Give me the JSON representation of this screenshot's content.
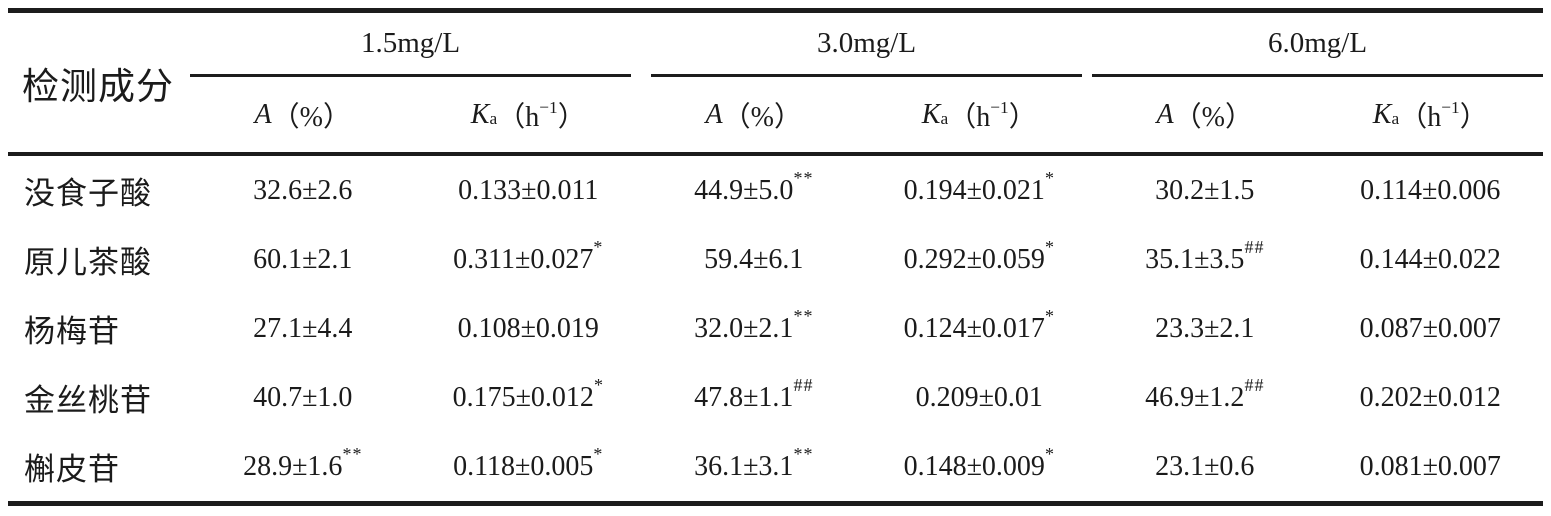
{
  "table": {
    "corner_header": "检测成分",
    "groups": [
      {
        "label": "1.5mg/L"
      },
      {
        "label": "3.0mg/L"
      },
      {
        "label": "6.0mg/L"
      }
    ],
    "subheader": {
      "a_symbol": "A",
      "a_rest": "（%）",
      "k_symbol": "K",
      "k_subscript": "a",
      "k_open": "（h",
      "k_superscript": "−1",
      "k_close": "）"
    },
    "rows": [
      {
        "component": "没食子酸",
        "cells": [
          {
            "value": "32.6±2.6",
            "mark": ""
          },
          {
            "value": "0.133±0.011",
            "mark": ""
          },
          {
            "value": "44.9±5.0",
            "mark": "**"
          },
          {
            "value": "0.194±0.021",
            "mark": "*"
          },
          {
            "value": "30.2±1.5",
            "mark": ""
          },
          {
            "value": "0.114±0.006",
            "mark": ""
          }
        ]
      },
      {
        "component": "原儿茶酸",
        "cells": [
          {
            "value": "60.1±2.1",
            "mark": ""
          },
          {
            "value": "0.311±0.027",
            "mark": "*"
          },
          {
            "value": "59.4±6.1",
            "mark": ""
          },
          {
            "value": "0.292±0.059",
            "mark": "*"
          },
          {
            "value": "35.1±3.5",
            "mark": "##"
          },
          {
            "value": "0.144±0.022",
            "mark": ""
          }
        ]
      },
      {
        "component": "杨梅苷",
        "cells": [
          {
            "value": "27.1±4.4",
            "mark": ""
          },
          {
            "value": "0.108±0.019",
            "mark": ""
          },
          {
            "value": "32.0±2.1",
            "mark": "**"
          },
          {
            "value": "0.124±0.017",
            "mark": "*"
          },
          {
            "value": "23.3±2.1",
            "mark": ""
          },
          {
            "value": "0.087±0.007",
            "mark": ""
          }
        ]
      },
      {
        "component": "金丝桃苷",
        "cells": [
          {
            "value": "40.7±1.0",
            "mark": ""
          },
          {
            "value": "0.175±0.012",
            "mark": "*"
          },
          {
            "value": "47.8±1.1",
            "mark": "##"
          },
          {
            "value": "0.209±0.01",
            "mark": ""
          },
          {
            "value": "46.9±1.2",
            "mark": "##"
          },
          {
            "value": "0.202±0.012",
            "mark": ""
          }
        ]
      },
      {
        "component": "槲皮苷",
        "cells": [
          {
            "value": "28.9±1.6",
            "mark": "**"
          },
          {
            "value": "0.118±0.005",
            "mark": "*"
          },
          {
            "value": "36.1±3.1",
            "mark": "**"
          },
          {
            "value": "0.148±0.009",
            "mark": "*"
          },
          {
            "value": "23.1±0.6",
            "mark": ""
          },
          {
            "value": "0.081±0.007",
            "mark": ""
          }
        ]
      }
    ]
  }
}
